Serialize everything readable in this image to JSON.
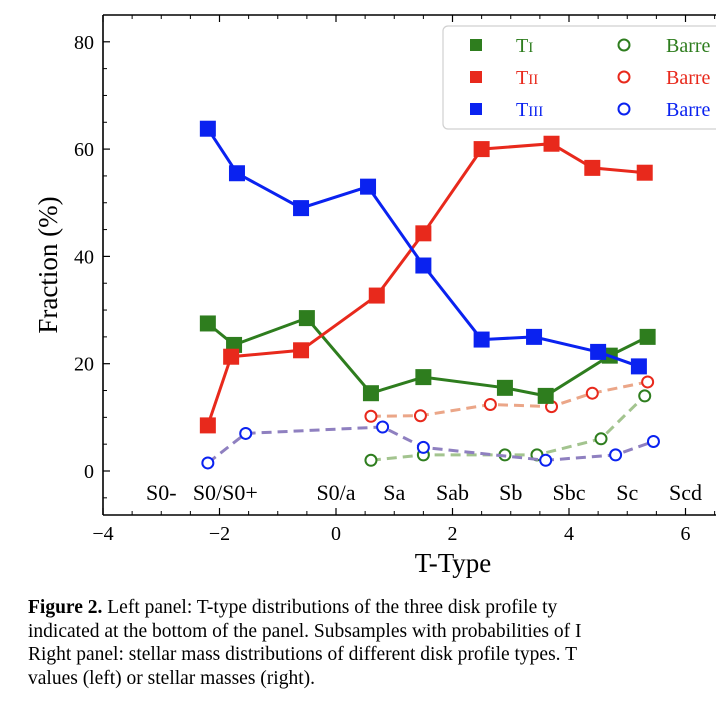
{
  "chart_data": {
    "type": "line",
    "xlabel": "T-Type",
    "ylabel": "Fraction (%)",
    "xlim": [
      -4,
      6.5
    ],
    "ylim": [
      -8,
      85
    ],
    "xticks": [
      -4,
      -2,
      0,
      2,
      4,
      6
    ],
    "xtick_labels": [
      "−4",
      "−2",
      "0",
      "2",
      "4",
      "6"
    ],
    "yticks": [
      0,
      20,
      40,
      60,
      80
    ],
    "grid": false,
    "legend_position": "top-right",
    "morph_labels": [
      {
        "text": "S0-",
        "x": -3.0
      },
      {
        "text": "S0/S0+",
        "x": -1.9
      },
      {
        "text": "S0/a",
        "x": 0.0
      },
      {
        "text": "Sa",
        "x": 1.0
      },
      {
        "text": "Sab",
        "x": 2.0
      },
      {
        "text": "Sb",
        "x": 3.0
      },
      {
        "text": "Sbc",
        "x": 4.0
      },
      {
        "text": "Sc",
        "x": 5.0
      },
      {
        "text": "Scd",
        "x": 6.0
      }
    ],
    "series": [
      {
        "name": "TI",
        "style": "solid",
        "marker": "square",
        "color": "#2e7d1e",
        "x": [
          -2.2,
          -1.75,
          -0.5,
          0.6,
          1.5,
          2.9,
          3.6,
          4.7,
          5.35
        ],
        "y": [
          27.5,
          23.5,
          28.5,
          14.5,
          17.5,
          15.5,
          14,
          21.5,
          25
        ]
      },
      {
        "name": "TII",
        "style": "solid",
        "marker": "square",
        "color": "#e8291c",
        "x": [
          -2.2,
          -1.8,
          -0.6,
          0.7,
          1.5,
          2.5,
          3.7,
          4.4,
          5.3
        ],
        "y": [
          8.5,
          21.3,
          22.5,
          32.7,
          44.3,
          60,
          61,
          56.5,
          55.6
        ]
      },
      {
        "name": "TIII",
        "style": "solid",
        "marker": "square",
        "color": "#0a22f0",
        "x": [
          -2.2,
          -1.7,
          -0.6,
          0.55,
          1.5,
          2.5,
          3.4,
          4.5,
          5.2
        ],
        "y": [
          63.8,
          55.5,
          49,
          53,
          38.3,
          24.5,
          25,
          22.2,
          19.5
        ]
      },
      {
        "name": "Barre",
        "style": "dashed",
        "marker": "circle",
        "color": "#2e7d1e",
        "line_color": "#a3c48f",
        "x": [
          0.6,
          1.5,
          2.9,
          3.45,
          4.55,
          5.3
        ],
        "y": [
          2,
          3,
          3,
          3,
          6,
          14
        ]
      },
      {
        "name": "Barre",
        "style": "dashed",
        "marker": "circle",
        "color": "#e8291c",
        "line_color": "#eba688",
        "x": [
          0.6,
          1.45,
          2.65,
          3.7,
          4.4,
          5.35
        ],
        "y": [
          10.2,
          10.3,
          12.4,
          12,
          14.5,
          16.6
        ]
      },
      {
        "name": "Barre",
        "style": "dashed",
        "marker": "circle",
        "color": "#0a22f0",
        "line_color": "#8f80c0",
        "x": [
          -2.2,
          -1.55,
          0.8,
          1.5,
          3.6,
          4.8,
          5.45
        ],
        "y": [
          1.5,
          7,
          8.2,
          4.4,
          2,
          3,
          5.5
        ]
      }
    ]
  },
  "caption": {
    "label": "Figure 2.",
    "line1": " Left panel: T-type distributions of the three disk profile ty",
    "line2": "indicated at the bottom of the panel. Subsamples with probabilities of I",
    "line3": "Right panel: stellar mass distributions of different disk profile types. T",
    "line4": "values (left) or stellar masses (right)."
  }
}
